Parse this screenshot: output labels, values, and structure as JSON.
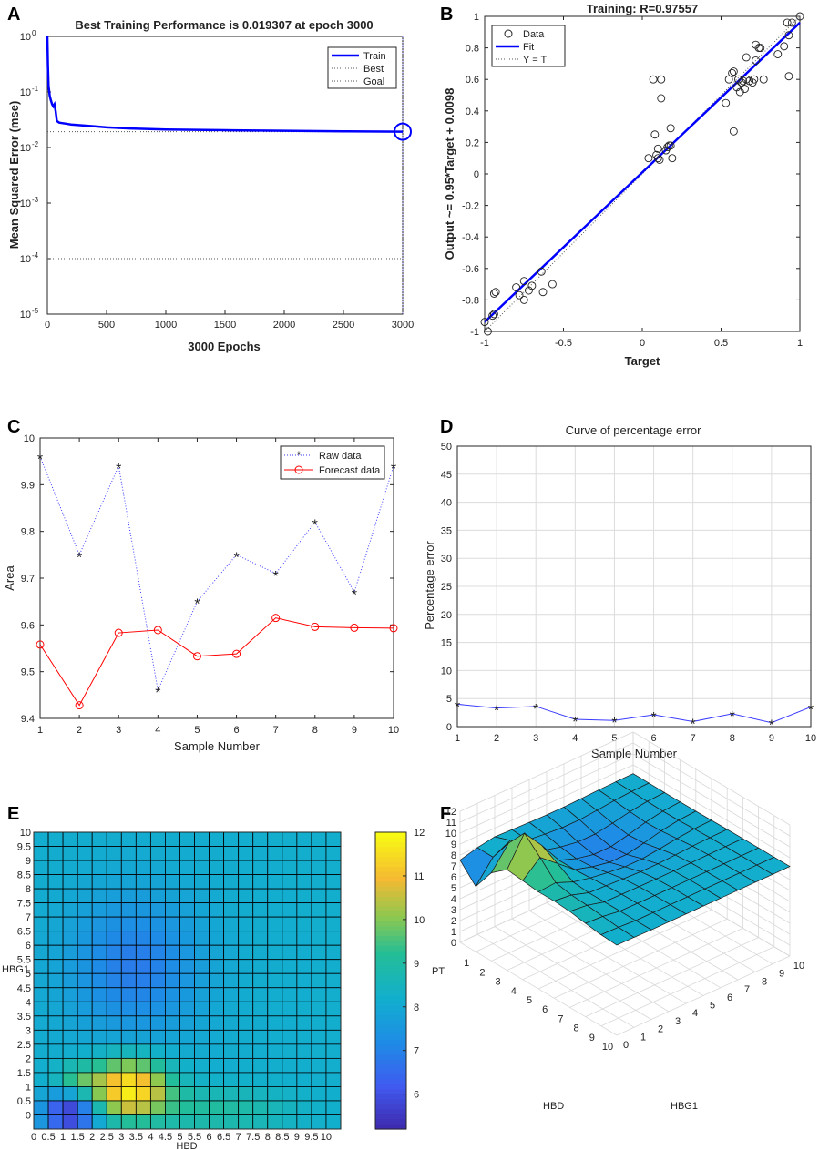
{
  "panels": {
    "a": "A",
    "b": "B",
    "c": "C",
    "d": "D",
    "e": "E",
    "f": "F"
  },
  "colors": {
    "blue": "#0000ff",
    "red": "#ff0000",
    "rawdata": "#3b3bff",
    "dotted": "#8a8aff"
  },
  "chart_data": [
    {
      "id": "A",
      "type": "line",
      "title": "Best Training Performance is 0.019307 at epoch 3000",
      "xlabel": "3000 Epochs",
      "ylabel": "Mean Squared Error  (mse)",
      "xlim": [
        0,
        3000
      ],
      "yscale": "log",
      "ylim": [
        1e-05,
        1
      ],
      "xticks": [
        "0",
        "500",
        "1000",
        "1500",
        "2000",
        "2500",
        "3000"
      ],
      "yticks": [
        {
          "base": "10",
          "exp": "0"
        },
        {
          "base": "10",
          "exp": "-1"
        },
        {
          "base": "10",
          "exp": "-2"
        },
        {
          "base": "10",
          "exp": "-3"
        },
        {
          "base": "10",
          "exp": "-4"
        },
        {
          "base": "10",
          "exp": "-5"
        }
      ],
      "legend": [
        "Train",
        "Best",
        "Goal"
      ],
      "train": {
        "x": [
          0,
          5,
          10,
          20,
          30,
          40,
          50,
          60,
          70,
          80,
          100,
          150,
          200,
          300,
          400,
          500,
          700,
          1000,
          1500,
          2000,
          2500,
          3000
        ],
        "y": [
          1.0,
          0.3,
          0.13,
          0.085,
          0.07,
          0.06,
          0.055,
          0.06,
          0.045,
          0.03,
          0.028,
          0.027,
          0.026,
          0.025,
          0.024,
          0.023,
          0.022,
          0.021,
          0.0205,
          0.02,
          0.0196,
          0.019307
        ]
      },
      "best": 0.019307,
      "best_epoch": 3000,
      "goal": 0.0001
    },
    {
      "id": "B",
      "type": "scatter",
      "title": "Training: R=0.97557",
      "xlabel": "Target",
      "ylabel": "Output ~= 0.95*Target + 0.0098",
      "xlim": [
        -1,
        1
      ],
      "ylim": [
        -1,
        1
      ],
      "xticks": [
        "-1",
        "-0.5",
        "0",
        "0.5",
        "1"
      ],
      "yticks": [
        "1",
        "0.8",
        "0.6",
        "0.4",
        "0.2",
        "0",
        "-0.2",
        "-0.4",
        "-0.6",
        "-0.8",
        "-1"
      ],
      "legend": [
        "Data",
        "Fit",
        "Y = T"
      ],
      "fit": {
        "slope": 0.95,
        "intercept": 0.0098
      },
      "points": [
        [
          -1,
          -0.94
        ],
        [
          -0.98,
          -1.0
        ],
        [
          -0.95,
          -0.9
        ],
        [
          -0.94,
          -0.89
        ],
        [
          -0.94,
          -0.76
        ],
        [
          -0.93,
          -0.75
        ],
        [
          -0.8,
          -0.72
        ],
        [
          -0.78,
          -0.77
        ],
        [
          -0.75,
          -0.68
        ],
        [
          -0.75,
          -0.8
        ],
        [
          -0.72,
          -0.74
        ],
        [
          -0.7,
          -0.71
        ],
        [
          -0.64,
          -0.62
        ],
        [
          -0.63,
          -0.75
        ],
        [
          -0.57,
          -0.7
        ],
        [
          0.04,
          0.1
        ],
        [
          0.07,
          0.6
        ],
        [
          0.08,
          0.25
        ],
        [
          0.09,
          0.12
        ],
        [
          0.1,
          0.1
        ],
        [
          0.1,
          0.16
        ],
        [
          0.11,
          0.09
        ],
        [
          0.12,
          0.6
        ],
        [
          0.12,
          0.48
        ],
        [
          0.15,
          0.15
        ],
        [
          0.16,
          0.17
        ],
        [
          0.17,
          0.18
        ],
        [
          0.18,
          0.18
        ],
        [
          0.18,
          0.29
        ],
        [
          0.19,
          0.1
        ],
        [
          0.53,
          0.45
        ],
        [
          0.55,
          0.6
        ],
        [
          0.57,
          0.64
        ],
        [
          0.58,
          0.65
        ],
        [
          0.58,
          0.27
        ],
        [
          0.6,
          0.55
        ],
        [
          0.61,
          0.6
        ],
        [
          0.62,
          0.52
        ],
        [
          0.63,
          0.58
        ],
        [
          0.64,
          0.59
        ],
        [
          0.65,
          0.54
        ],
        [
          0.66,
          0.6
        ],
        [
          0.66,
          0.74
        ],
        [
          0.68,
          0.59
        ],
        [
          0.7,
          0.58
        ],
        [
          0.71,
          0.6
        ],
        [
          0.72,
          0.72
        ],
        [
          0.72,
          0.82
        ],
        [
          0.74,
          0.8
        ],
        [
          0.75,
          0.8
        ],
        [
          0.77,
          0.6
        ],
        [
          0.86,
          0.76
        ],
        [
          0.9,
          0.81
        ],
        [
          0.92,
          0.96
        ],
        [
          0.93,
          0.62
        ],
        [
          0.93,
          0.88
        ],
        [
          0.95,
          0.96
        ],
        [
          1.0,
          1.0
        ]
      ]
    },
    {
      "id": "C",
      "type": "line",
      "title": "",
      "xlabel": "Sample Number",
      "ylabel": "Area",
      "xlim": [
        1,
        10
      ],
      "ylim": [
        9.4,
        10
      ],
      "xticks": [
        "1",
        "2",
        "3",
        "4",
        "5",
        "6",
        "7",
        "8",
        "9",
        "10"
      ],
      "yticks": [
        "10",
        "9.9",
        "9.8",
        "9.7",
        "9.6",
        "9.5",
        "9.4"
      ],
      "legend": [
        "Raw data",
        "Forecast data"
      ],
      "x": [
        1,
        2,
        3,
        4,
        5,
        6,
        7,
        8,
        9,
        10
      ],
      "series": [
        {
          "name": "Raw data",
          "values": [
            9.96,
            9.75,
            9.94,
            9.46,
            9.65,
            9.75,
            9.71,
            9.82,
            9.67,
            9.94
          ]
        },
        {
          "name": "Forecast data",
          "values": [
            9.558,
            9.428,
            9.583,
            9.589,
            9.533,
            9.538,
            9.615,
            9.596,
            9.594,
            9.593
          ]
        }
      ]
    },
    {
      "id": "D",
      "type": "line",
      "title": "Curve of percentage error",
      "xlabel": "Sample Number",
      "ylabel": "Percentage error",
      "xlim": [
        1,
        10
      ],
      "ylim": [
        0,
        50
      ],
      "xticks": [
        "1",
        "2",
        "3",
        "4",
        "5",
        "6",
        "7",
        "8",
        "9",
        "10"
      ],
      "yticks": [
        "50",
        "45",
        "40",
        "35",
        "30",
        "25",
        "20",
        "15",
        "10",
        "5",
        "0"
      ],
      "x": [
        1,
        2,
        3,
        4,
        5,
        6,
        7,
        8,
        9,
        10
      ],
      "values": [
        4.0,
        3.3,
        3.6,
        1.3,
        1.1,
        2.1,
        0.9,
        2.3,
        0.7,
        3.5
      ]
    },
    {
      "id": "E",
      "type": "heatmap",
      "title": "",
      "xlabel": "HBD",
      "ylabel": "HBG1",
      "xticks": [
        "0",
        "0.5",
        "1",
        "1.5",
        "2",
        "2.5",
        "3",
        "3.5",
        "4",
        "4.5",
        "5",
        "5.5",
        "6",
        "6.5",
        "7",
        "7.5",
        "8",
        "8.5",
        "9",
        "9.5",
        "10"
      ],
      "yticks": [
        "10",
        "9.5",
        "9",
        "8.5",
        "8",
        "7.5",
        "7",
        "6.5",
        "6",
        "5.5",
        "5",
        "4.5",
        "4",
        "3.5",
        "3",
        "2.5",
        "2",
        "1.5",
        "1",
        "0.5",
        "0"
      ],
      "colorbar_ticks": [
        "12",
        "11",
        "10",
        "9",
        "8",
        "7",
        "6"
      ],
      "clim": [
        5.2,
        12
      ]
    },
    {
      "id": "F",
      "type": "surface",
      "title": "",
      "xlabel": "HBD",
      "ylabel": "HBG1",
      "zlabel": "PT",
      "zticks": [
        "12",
        "11",
        "10",
        "9",
        "8",
        "7",
        "6",
        "5",
        "4",
        "3",
        "2",
        "1",
        "0"
      ],
      "xticks": [
        "1",
        "2",
        "3",
        "4",
        "5",
        "6",
        "7",
        "8",
        "9",
        "10"
      ],
      "yticks": [
        "0",
        "1",
        "2",
        "3",
        "4",
        "5",
        "6",
        "7",
        "8",
        "9",
        "10"
      ]
    }
  ]
}
